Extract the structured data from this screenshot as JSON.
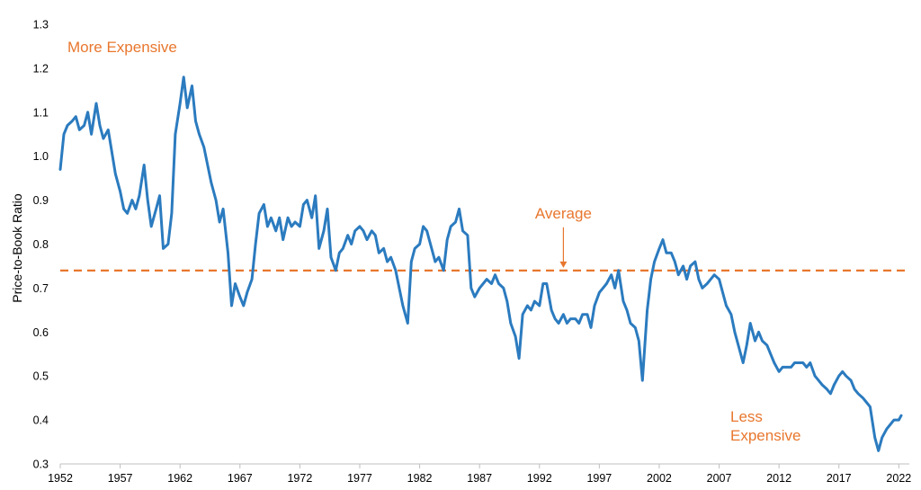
{
  "chart_data": {
    "type": "line",
    "title": "",
    "xlabel": "",
    "ylabel": "Price-to-Book Ratio",
    "xlim": [
      1952,
      2022.5
    ],
    "ylim": [
      0.3,
      1.3
    ],
    "x_ticks": [
      "1952",
      "1957",
      "1962",
      "1967",
      "1972",
      "1977",
      "1982",
      "1987",
      "1992",
      "1997",
      "2002",
      "2007",
      "2012",
      "2017",
      "2022"
    ],
    "y_ticks": [
      "0.3",
      "0.4",
      "0.5",
      "0.6",
      "0.7",
      "0.8",
      "0.9",
      "1.0",
      "1.1",
      "1.2",
      "1.3"
    ],
    "grid": false,
    "legend": "none",
    "colors": {
      "series": "#2B7BBF",
      "average": "#E8772E",
      "annotation": "#E8772E",
      "axis": "#bfbfbf"
    },
    "average": {
      "value": 0.74,
      "label": "Average",
      "label_x": 1994
    },
    "annotations": {
      "top": "More Expensive",
      "bottom_line1": "Less",
      "bottom_line2": "Expensive"
    },
    "series": [
      {
        "name": "",
        "x": [
          1952.0,
          1952.3,
          1952.6,
          1953.0,
          1953.3,
          1953.6,
          1954.0,
          1954.3,
          1954.6,
          1955.0,
          1955.3,
          1955.6,
          1956.0,
          1956.3,
          1956.6,
          1957.0,
          1957.3,
          1957.6,
          1958.0,
          1958.3,
          1958.6,
          1959.0,
          1959.3,
          1959.6,
          1960.0,
          1960.3,
          1960.6,
          1961.0,
          1961.3,
          1961.6,
          1962.0,
          1962.3,
          1962.6,
          1963.0,
          1963.3,
          1963.6,
          1964.0,
          1964.3,
          1964.6,
          1965.0,
          1965.3,
          1965.6,
          1966.0,
          1966.3,
          1966.6,
          1967.0,
          1967.3,
          1967.6,
          1968.0,
          1968.3,
          1968.6,
          1969.0,
          1969.3,
          1969.6,
          1970.0,
          1970.3,
          1970.6,
          1971.0,
          1971.3,
          1971.6,
          1972.0,
          1972.3,
          1972.6,
          1973.0,
          1973.3,
          1973.6,
          1974.0,
          1974.3,
          1974.6,
          1975.0,
          1975.3,
          1975.6,
          1976.0,
          1976.3,
          1976.6,
          1977.0,
          1977.3,
          1977.6,
          1978.0,
          1978.3,
          1978.6,
          1979.0,
          1979.3,
          1979.6,
          1980.0,
          1980.3,
          1980.6,
          1981.0,
          1981.3,
          1981.6,
          1982.0,
          1982.3,
          1982.6,
          1983.0,
          1983.3,
          1983.6,
          1984.0,
          1984.3,
          1984.6,
          1985.0,
          1985.3,
          1985.6,
          1986.0,
          1986.3,
          1986.6,
          1987.0,
          1987.3,
          1987.6,
          1988.0,
          1988.3,
          1988.6,
          1989.0,
          1989.3,
          1989.6,
          1990.0,
          1990.3,
          1990.6,
          1991.0,
          1991.3,
          1991.6,
          1992.0,
          1992.3,
          1992.6,
          1993.0,
          1993.3,
          1993.6,
          1994.0,
          1994.3,
          1994.6,
          1995.0,
          1995.3,
          1995.6,
          1996.0,
          1996.3,
          1996.6,
          1997.0,
          1997.3,
          1997.6,
          1998.0,
          1998.3,
          1998.6,
          1999.0,
          1999.3,
          1999.6,
          2000.0,
          2000.3,
          2000.6,
          2001.0,
          2001.3,
          2001.6,
          2002.0,
          2002.3,
          2002.6,
          2003.0,
          2003.3,
          2003.6,
          2004.0,
          2004.3,
          2004.6,
          2005.0,
          2005.3,
          2005.6,
          2006.0,
          2006.3,
          2006.6,
          2007.0,
          2007.3,
          2007.6,
          2008.0,
          2008.3,
          2008.6,
          2009.0,
          2009.3,
          2009.6,
          2010.0,
          2010.3,
          2010.6,
          2011.0,
          2011.3,
          2011.6,
          2012.0,
          2012.3,
          2012.6,
          2013.0,
          2013.3,
          2013.6,
          2014.0,
          2014.3,
          2014.6,
          2015.0,
          2015.3,
          2015.6,
          2016.0,
          2016.3,
          2016.6,
          2017.0,
          2017.3,
          2017.6,
          2018.0,
          2018.3,
          2018.6,
          2019.0,
          2019.3,
          2019.6,
          2020.0,
          2020.3,
          2020.6,
          2021.0,
          2021.3,
          2021.6,
          2022.0,
          2022.2
        ],
        "values": [
          0.97,
          1.05,
          1.07,
          1.08,
          1.09,
          1.06,
          1.07,
          1.1,
          1.05,
          1.12,
          1.07,
          1.04,
          1.06,
          1.01,
          0.96,
          0.92,
          0.88,
          0.87,
          0.9,
          0.88,
          0.91,
          0.98,
          0.9,
          0.84,
          0.88,
          0.91,
          0.79,
          0.8,
          0.87,
          1.05,
          1.12,
          1.18,
          1.11,
          1.16,
          1.08,
          1.05,
          1.02,
          0.98,
          0.94,
          0.9,
          0.85,
          0.88,
          0.78,
          0.66,
          0.71,
          0.68,
          0.66,
          0.69,
          0.72,
          0.8,
          0.87,
          0.89,
          0.84,
          0.86,
          0.83,
          0.86,
          0.81,
          0.86,
          0.84,
          0.85,
          0.84,
          0.89,
          0.9,
          0.86,
          0.91,
          0.79,
          0.83,
          0.88,
          0.77,
          0.74,
          0.78,
          0.79,
          0.82,
          0.8,
          0.83,
          0.84,
          0.83,
          0.81,
          0.83,
          0.82,
          0.78,
          0.79,
          0.76,
          0.77,
          0.74,
          0.7,
          0.66,
          0.62,
          0.76,
          0.79,
          0.8,
          0.84,
          0.83,
          0.79,
          0.76,
          0.77,
          0.74,
          0.81,
          0.84,
          0.85,
          0.88,
          0.83,
          0.82,
          0.7,
          0.68,
          0.7,
          0.71,
          0.72,
          0.71,
          0.73,
          0.71,
          0.7,
          0.67,
          0.62,
          0.59,
          0.54,
          0.64,
          0.66,
          0.65,
          0.67,
          0.66,
          0.71,
          0.71,
          0.65,
          0.63,
          0.62,
          0.64,
          0.62,
          0.63,
          0.63,
          0.62,
          0.64,
          0.64,
          0.61,
          0.66,
          0.69,
          0.7,
          0.71,
          0.73,
          0.7,
          0.74,
          0.67,
          0.65,
          0.62,
          0.61,
          0.58,
          0.49,
          0.65,
          0.72,
          0.76,
          0.79,
          0.81,
          0.78,
          0.78,
          0.76,
          0.73,
          0.75,
          0.72,
          0.75,
          0.76,
          0.72,
          0.7,
          0.71,
          0.72,
          0.73,
          0.72,
          0.69,
          0.66,
          0.64,
          0.6,
          0.57,
          0.53,
          0.57,
          0.62,
          0.58,
          0.6,
          0.58,
          0.57,
          0.55,
          0.53,
          0.51,
          0.52,
          0.52,
          0.52,
          0.53,
          0.53,
          0.53,
          0.52,
          0.53,
          0.5,
          0.49,
          0.48,
          0.47,
          0.46,
          0.48,
          0.5,
          0.51,
          0.5,
          0.49,
          0.47,
          0.46,
          0.45,
          0.44,
          0.43,
          0.36,
          0.33,
          0.36,
          0.38,
          0.39,
          0.4,
          0.4,
          0.41
        ]
      }
    ]
  }
}
